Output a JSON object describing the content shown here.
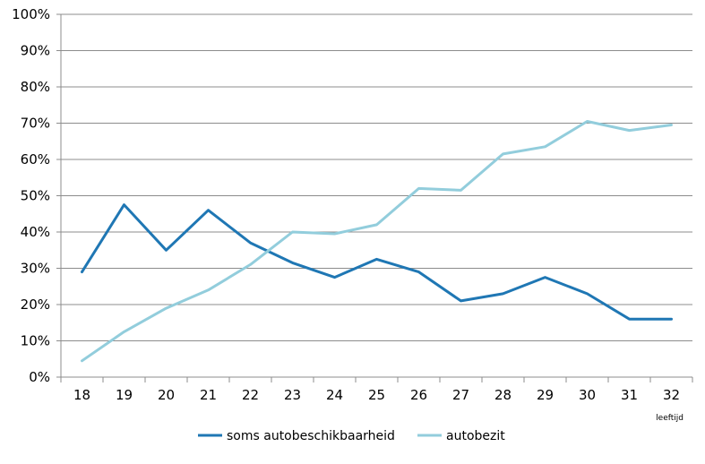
{
  "chart_data": {
    "type": "line",
    "title": "",
    "xlabel": "leeftijd",
    "ylabel": "",
    "categories": [
      "18",
      "19",
      "20",
      "21",
      "22",
      "23",
      "24",
      "25",
      "26",
      "27",
      "28",
      "29",
      "30",
      "31",
      "32"
    ],
    "ylim": [
      0,
      100
    ],
    "ytick_labels": [
      "0%",
      "10%",
      "20%",
      "30%",
      "40%",
      "50%",
      "60%",
      "70%",
      "80%",
      "90%",
      "100%"
    ],
    "grid": true,
    "legend_position": "bottom",
    "series": [
      {
        "name": "soms autobeschikbaarheid",
        "color": "#1f77b4",
        "values": [
          29,
          47.5,
          35,
          46,
          37,
          31.5,
          27.5,
          32.5,
          29,
          21,
          23,
          27.5,
          23,
          16,
          16
        ]
      },
      {
        "name": "autobezit",
        "color": "#92cddc",
        "values": [
          4.5,
          12.5,
          19,
          24,
          31,
          40,
          39.5,
          42,
          52,
          51.5,
          61.5,
          63.5,
          70.5,
          68,
          69.5
        ]
      }
    ]
  }
}
